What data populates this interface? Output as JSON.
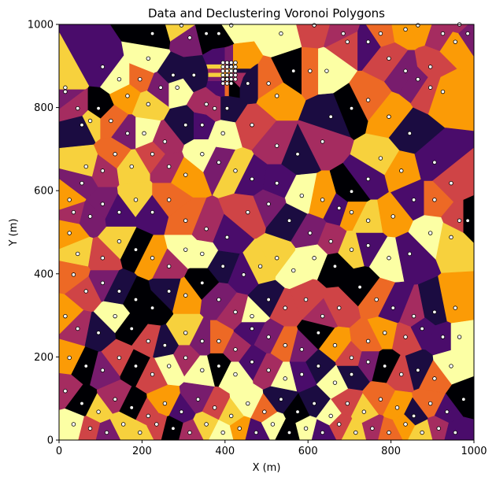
{
  "chart_data": {
    "type": "scatter",
    "title": "Data and Declustering Voronoi Polygons",
    "xlabel": "X (m)",
    "ylabel": "Y (m)",
    "xlim": [
      0,
      1000
    ],
    "ylim": [
      0,
      1000
    ],
    "xticks": [
      "0",
      "200",
      "400",
      "600",
      "800",
      "1000"
    ],
    "yticks": [
      "0",
      "200",
      "400",
      "600",
      "800",
      "1000"
    ],
    "grid": false,
    "legend": "none",
    "colormap": "inferno",
    "colormap_stops": [
      "#000004",
      "#1b0c41",
      "#4a0c6b",
      "#781c6d",
      "#a52c60",
      "#cf4446",
      "#ed6925",
      "#fb9b06",
      "#f7d13d",
      "#fcffa4"
    ],
    "marker_fill": "#ffffff",
    "marker_edge": "#000000",
    "points": [
      [
        105,
        898
      ],
      [
        145,
        868
      ],
      [
        195,
        868
      ],
      [
        215,
        918
      ],
      [
        225,
        978
      ],
      [
        295,
        998
      ],
      [
        315,
        968
      ],
      [
        355,
        978
      ],
      [
        385,
        978
      ],
      [
        415,
        998
      ],
      [
        535,
        978
      ],
      [
        615,
        998
      ],
      [
        685,
        978
      ],
      [
        695,
        958
      ],
      [
        775,
        978
      ],
      [
        835,
        988
      ],
      [
        865,
        998
      ],
      [
        965,
        1000
      ],
      [
        925,
        978
      ],
      [
        15,
        848
      ],
      [
        15,
        838
      ],
      [
        45,
        798
      ],
      [
        95,
        798
      ],
      [
        165,
        828
      ],
      [
        215,
        808
      ],
      [
        245,
        848
      ],
      [
        275,
        878
      ],
      [
        285,
        848
      ],
      [
        325,
        878
      ],
      [
        355,
        808
      ],
      [
        375,
        798
      ],
      [
        405,
        798
      ],
      [
        455,
        858
      ],
      [
        505,
        858
      ],
      [
        525,
        828
      ],
      [
        565,
        888
      ],
      [
        605,
        888
      ],
      [
        645,
        888
      ],
      [
        745,
        958
      ],
      [
        795,
        918
      ],
      [
        835,
        888
      ],
      [
        865,
        868
      ],
      [
        895,
        898
      ],
      [
        955,
        958
      ],
      [
        985,
        978
      ],
      [
        55,
        758
      ],
      [
        75,
        768
      ],
      [
        125,
        768
      ],
      [
        165,
        738
      ],
      [
        205,
        738
      ],
      [
        255,
        718
      ],
      [
        305,
        758
      ],
      [
        345,
        758
      ],
      [
        395,
        738
      ],
      [
        465,
        758
      ],
      [
        525,
        708
      ],
      [
        575,
        688
      ],
      [
        635,
        718
      ],
      [
        655,
        778
      ],
      [
        705,
        798
      ],
      [
        745,
        818
      ],
      [
        795,
        778
      ],
      [
        845,
        738
      ],
      [
        895,
        848
      ],
      [
        925,
        838
      ],
      [
        65,
        658
      ],
      [
        55,
        618
      ],
      [
        105,
        648
      ],
      [
        135,
        688
      ],
      [
        175,
        658
      ],
      [
        225,
        688
      ],
      [
        265,
        658
      ],
      [
        305,
        638
      ],
      [
        345,
        688
      ],
      [
        385,
        668
      ],
      [
        425,
        648
      ],
      [
        465,
        628
      ],
      [
        525,
        618
      ],
      [
        585,
        588
      ],
      [
        635,
        578
      ],
      [
        675,
        558
      ],
      [
        705,
        598
      ],
      [
        745,
        628
      ],
      [
        775,
        678
      ],
      [
        825,
        648
      ],
      [
        905,
        668
      ],
      [
        945,
        618
      ],
      [
        25,
        578
      ],
      [
        35,
        548
      ],
      [
        75,
        538
      ],
      [
        105,
        568
      ],
      [
        145,
        548
      ],
      [
        185,
        578
      ],
      [
        225,
        548
      ],
      [
        265,
        578
      ],
      [
        305,
        528
      ],
      [
        355,
        508
      ],
      [
        405,
        488
      ],
      [
        455,
        548
      ],
      [
        505,
        568
      ],
      [
        555,
        528
      ],
      [
        605,
        498
      ],
      [
        655,
        478
      ],
      [
        705,
        548
      ],
      [
        745,
        528
      ],
      [
        805,
        538
      ],
      [
        855,
        578
      ],
      [
        905,
        578
      ],
      [
        965,
        528
      ],
      [
        985,
        528
      ],
      [
        25,
        498
      ],
      [
        45,
        448
      ],
      [
        105,
        438
      ],
      [
        145,
        478
      ],
      [
        185,
        458
      ],
      [
        225,
        438
      ],
      [
        265,
        418
      ],
      [
        305,
        458
      ],
      [
        345,
        448
      ],
      [
        395,
        418
      ],
      [
        445,
        398
      ],
      [
        485,
        418
      ],
      [
        525,
        438
      ],
      [
        565,
        408
      ],
      [
        615,
        438
      ],
      [
        665,
        418
      ],
      [
        705,
        458
      ],
      [
        745,
        468
      ],
      [
        795,
        438
      ],
      [
        845,
        448
      ],
      [
        895,
        498
      ],
      [
        945,
        488
      ],
      [
        35,
        398
      ],
      [
        65,
        358
      ],
      [
        105,
        378
      ],
      [
        145,
        358
      ],
      [
        185,
        338
      ],
      [
        225,
        318
      ],
      [
        265,
        358
      ],
      [
        305,
        348
      ],
      [
        345,
        378
      ],
      [
        385,
        338
      ],
      [
        425,
        308
      ],
      [
        465,
        298
      ],
      [
        505,
        338
      ],
      [
        545,
        318
      ],
      [
        595,
        338
      ],
      [
        635,
        298
      ],
      [
        675,
        318
      ],
      [
        725,
        368
      ],
      [
        765,
        338
      ],
      [
        805,
        318
      ],
      [
        855,
        298
      ],
      [
        905,
        308
      ],
      [
        955,
        318
      ],
      [
        15,
        298
      ],
      [
        45,
        268
      ],
      [
        95,
        258
      ],
      [
        135,
        298
      ],
      [
        175,
        268
      ],
      [
        215,
        238
      ],
      [
        255,
        228
      ],
      [
        305,
        258
      ],
      [
        345,
        238
      ],
      [
        385,
        238
      ],
      [
        425,
        218
      ],
      [
        465,
        268
      ],
      [
        505,
        248
      ],
      [
        545,
        228
      ],
      [
        585,
        218
      ],
      [
        625,
        258
      ],
      [
        665,
        228
      ],
      [
        705,
        198
      ],
      [
        745,
        238
      ],
      [
        785,
        258
      ],
      [
        835,
        248
      ],
      [
        875,
        268
      ],
      [
        925,
        248
      ],
      [
        965,
        248
      ],
      [
        25,
        198
      ],
      [
        65,
        178
      ],
      [
        105,
        168
      ],
      [
        145,
        198
      ],
      [
        185,
        178
      ],
      [
        225,
        158
      ],
      [
        265,
        178
      ],
      [
        305,
        198
      ],
      [
        345,
        168
      ],
      [
        385,
        178
      ],
      [
        425,
        158
      ],
      [
        465,
        188
      ],
      [
        505,
        168
      ],
      [
        545,
        148
      ],
      [
        585,
        158
      ],
      [
        625,
        178
      ],
      [
        665,
        138
      ],
      [
        705,
        158
      ],
      [
        745,
        188
      ],
      [
        785,
        178
      ],
      [
        825,
        158
      ],
      [
        865,
        168
      ],
      [
        905,
        148
      ],
      [
        945,
        178
      ],
      [
        15,
        118
      ],
      [
        55,
        88
      ],
      [
        95,
        68
      ],
      [
        135,
        98
      ],
      [
        175,
        78
      ],
      [
        215,
        58
      ],
      [
        255,
        88
      ],
      [
        295,
        68
      ],
      [
        335,
        98
      ],
      [
        375,
        78
      ],
      [
        415,
        58
      ],
      [
        455,
        88
      ],
      [
        495,
        68
      ],
      [
        535,
        98
      ],
      [
        575,
        68
      ],
      [
        615,
        88
      ],
      [
        655,
        58
      ],
      [
        695,
        88
      ],
      [
        735,
        68
      ],
      [
        775,
        98
      ],
      [
        815,
        78
      ],
      [
        855,
        58
      ],
      [
        895,
        88
      ],
      [
        935,
        68
      ],
      [
        975,
        98
      ],
      [
        35,
        38
      ],
      [
        75,
        28
      ],
      [
        115,
        18
      ],
      [
        155,
        38
      ],
      [
        195,
        18
      ],
      [
        235,
        38
      ],
      [
        275,
        28
      ],
      [
        315,
        18
      ],
      [
        355,
        38
      ],
      [
        395,
        18
      ],
      [
        435,
        28
      ],
      [
        475,
        18
      ],
      [
        515,
        38
      ],
      [
        555,
        18
      ],
      [
        595,
        28
      ],
      [
        635,
        18
      ],
      [
        675,
        38
      ],
      [
        715,
        18
      ],
      [
        755,
        28
      ],
      [
        795,
        18
      ],
      [
        835,
        38
      ],
      [
        875,
        18
      ],
      [
        915,
        28
      ],
      [
        955,
        18
      ],
      [
        395,
        908
      ],
      [
        405,
        908
      ],
      [
        415,
        908
      ],
      [
        425,
        908
      ],
      [
        395,
        898
      ],
      [
        405,
        898
      ],
      [
        415,
        898
      ],
      [
        425,
        898
      ],
      [
        395,
        888
      ],
      [
        405,
        888
      ],
      [
        415,
        888
      ],
      [
        425,
        888
      ],
      [
        395,
        878
      ],
      [
        405,
        878
      ],
      [
        415,
        878
      ],
      [
        425,
        878
      ],
      [
        395,
        868
      ],
      [
        405,
        868
      ],
      [
        415,
        868
      ],
      [
        425,
        868
      ],
      [
        395,
        858
      ],
      [
        405,
        858
      ],
      [
        415,
        858
      ]
    ]
  }
}
